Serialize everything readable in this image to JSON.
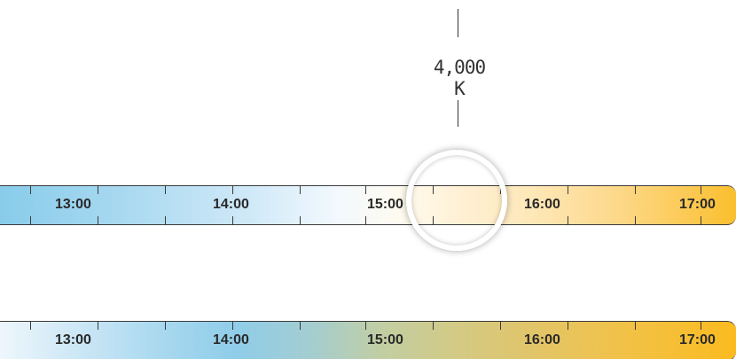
{
  "readout": {
    "value": "4,000 K"
  },
  "timeline_top": {
    "hours": [
      "13:00",
      "14:00",
      "15:00",
      "16:00",
      "17:00"
    ]
  },
  "timeline_bottom": {
    "hours": [
      "13:00",
      "14:00",
      "15:00",
      "16:00",
      "17:00"
    ]
  },
  "colors": {
    "cool": "#88ccea",
    "neutral": "#ffffff",
    "warm": "#fbbf2e",
    "tick": "#3a3a3a"
  },
  "handle": {
    "icon": "ring-handle-icon",
    "time_position": "15:30"
  }
}
